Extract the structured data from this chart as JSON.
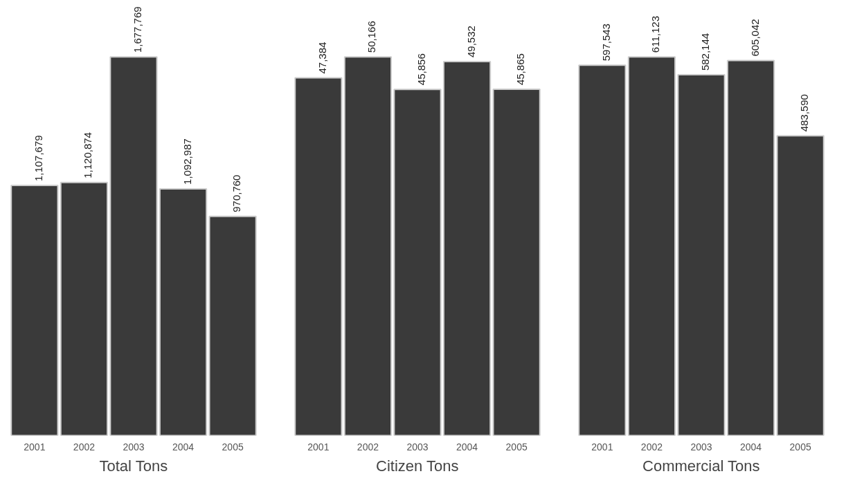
{
  "chart_data": [
    {
      "type": "bar",
      "title": "Total Tons",
      "categories": [
        "2001",
        "2002",
        "2003",
        "2004",
        "2005"
      ],
      "values": [
        1107679,
        1120874,
        1677769,
        1092987,
        970760
      ],
      "value_labels": [
        "1,107,679",
        "1,120,874",
        "1,677,769",
        "1,092,987",
        "970,760"
      ],
      "color": "#3a3a3a",
      "tick_labels": "x"
    },
    {
      "type": "bar",
      "title": "Citizen Tons",
      "categories": [
        "2001",
        "2002",
        "2003",
        "2004",
        "2005"
      ],
      "values": [
        47384,
        50166,
        45856,
        49532,
        45865
      ],
      "value_labels": [
        "47,384",
        "50,166",
        "45,856",
        "49,532",
        "45,865"
      ],
      "color": "#3a3a3a",
      "tick_labels": "x"
    },
    {
      "type": "bar",
      "title": "Commercial Tons",
      "categories": [
        "2001",
        "2002",
        "2003",
        "2004",
        "2005"
      ],
      "values": [
        597543,
        611123,
        582144,
        605042,
        483590
      ],
      "value_labels": [
        "597,543",
        "611,123",
        "582,144",
        "605,042",
        "483,590"
      ],
      "color": "#3a3a3a",
      "tick_labels": "x"
    }
  ]
}
